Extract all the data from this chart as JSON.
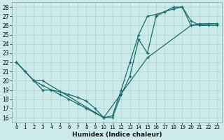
{
  "xlabel": "Humidex (Indice chaleur)",
  "xlim": [
    -0.5,
    23.5
  ],
  "ylim": [
    15.5,
    28.5
  ],
  "xticks": [
    0,
    1,
    2,
    3,
    4,
    5,
    6,
    7,
    8,
    9,
    10,
    11,
    12,
    13,
    14,
    15,
    16,
    17,
    18,
    19,
    20,
    21,
    22,
    23
  ],
  "yticks": [
    16,
    17,
    18,
    19,
    20,
    21,
    22,
    23,
    24,
    25,
    26,
    27,
    28
  ],
  "bg_color": "#cceaea",
  "grid_color": "#aad4d4",
  "line_color": "#1a6b6b",
  "line1_x": [
    0,
    1,
    2,
    3,
    4,
    5,
    6,
    7,
    8,
    9,
    10,
    11,
    12,
    13,
    14,
    15,
    16,
    17,
    18,
    19,
    20,
    21,
    22,
    23
  ],
  "line1_y": [
    22,
    21,
    20,
    19,
    19,
    18.5,
    18,
    17.5,
    17,
    16.5,
    16,
    16,
    18.5,
    20.5,
    24.5,
    23,
    27,
    27.5,
    28,
    28,
    26,
    26.2,
    26.2,
    26.2
  ],
  "line2_x": [
    0,
    1,
    2,
    3,
    4,
    5,
    6,
    7,
    8,
    9,
    10,
    11,
    12,
    13,
    14,
    15,
    16,
    17,
    18,
    19,
    20,
    21,
    22,
    23
  ],
  "line2_y": [
    22,
    21,
    20,
    19.5,
    19,
    18.8,
    18.5,
    18.2,
    17.8,
    17,
    16,
    16.2,
    19,
    22,
    25,
    27,
    27.2,
    27.5,
    27.8,
    28,
    26.5,
    26,
    26,
    26
  ],
  "line3_x": [
    0,
    2,
    3,
    10,
    15,
    20,
    23
  ],
  "line3_y": [
    22,
    20,
    20,
    16,
    22.5,
    26,
    26.2
  ]
}
